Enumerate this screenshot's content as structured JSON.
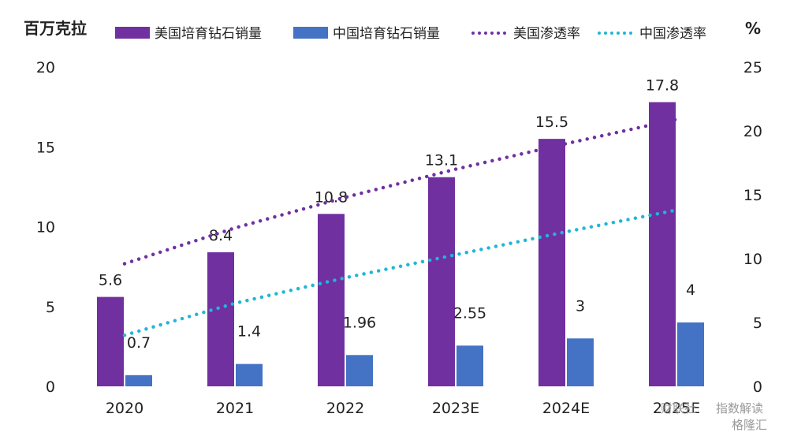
{
  "chart_data": {
    "type": "bar",
    "categories": [
      "2020",
      "2021",
      "2022",
      "2023E",
      "2024E",
      "2025E"
    ],
    "y_left_unit": "百万克拉",
    "y_right_unit": "%",
    "y_left_lim": [
      0,
      20
    ],
    "y_left_ticks": [
      "0",
      "5",
      "10",
      "15",
      "20"
    ],
    "y_right_lim": [
      0,
      25
    ],
    "y_right_ticks": [
      "0",
      "5",
      "10",
      "15",
      "20",
      "25"
    ],
    "grid": false,
    "legend_position": "top",
    "series": [
      {
        "name": "美国培育钻石销量",
        "type": "bar",
        "axis": "left",
        "color": "#7030a0",
        "values": [
          5.6,
          8.4,
          10.8,
          13.1,
          15.5,
          17.8
        ],
        "labels": [
          "5.6",
          "8.4",
          "10.8",
          "13.1",
          "15.5",
          "17.8"
        ]
      },
      {
        "name": "中国培育钻石销量",
        "type": "bar",
        "axis": "left",
        "color": "#4472c4",
        "values": [
          0.7,
          1.4,
          1.96,
          2.55,
          3,
          4
        ],
        "labels": [
          "0.7",
          "1.4",
          "1.96",
          "2.55",
          "3",
          "4"
        ]
      },
      {
        "name": "美国渗透率",
        "type": "line",
        "style": "dotted",
        "axis": "right",
        "color": "#7030a0",
        "values": [
          9.6,
          12.4,
          14.8,
          17.0,
          19.0,
          20.9
        ]
      },
      {
        "name": "中国渗透率",
        "type": "line",
        "style": "dotted",
        "axis": "right",
        "color": "#21b6d8",
        "values": [
          4.0,
          6.5,
          8.5,
          10.3,
          12.1,
          13.8
        ]
      }
    ]
  },
  "watermark": {
    "text1": "财联社",
    "text2": "指数解读",
    "text3": "格隆汇"
  }
}
